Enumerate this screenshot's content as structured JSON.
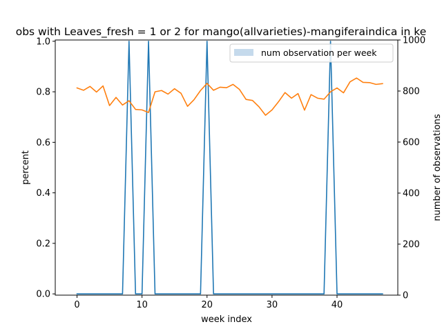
{
  "chart_data": {
    "type": "line",
    "title": "obs with Leaves_fresh = 1 or 2 for mango(allvarieties)-mangiferaindica in ke",
    "xlabel": "week index",
    "ylabel": "percent",
    "y2label": "number of observations",
    "xlim": [
      -3.35,
      49.35
    ],
    "ylim": [
      -0.005,
      1.005
    ],
    "y2lim": [
      0,
      1000
    ],
    "xticks": [
      0,
      10,
      20,
      30,
      40
    ],
    "yticks": [
      0.0,
      0.2,
      0.4,
      0.6,
      0.8,
      1.0
    ],
    "y2ticks": [
      0,
      200,
      400,
      600,
      800,
      1000
    ],
    "xtick_labels": [
      "0",
      "10",
      "20",
      "30",
      "40"
    ],
    "ytick_labels": [
      "0.0",
      "0.2",
      "0.4",
      "0.6",
      "0.8",
      "1.0"
    ],
    "y2tick_labels": [
      "0",
      "200",
      "400",
      "600",
      "800",
      "1000"
    ],
    "grid": false,
    "legend": {
      "placement": "top-right",
      "entries": [
        "num observation per week"
      ]
    },
    "series": [
      {
        "axis": "left",
        "color": "#1f77b4",
        "x": [
          0,
          1,
          2,
          3,
          4,
          5,
          6,
          7,
          8,
          9,
          10,
          11,
          12,
          13,
          14,
          15,
          16,
          17,
          18,
          19,
          20,
          21,
          22,
          23,
          24,
          25,
          26,
          27,
          28,
          29,
          30,
          31,
          32,
          33,
          34,
          35,
          36,
          37,
          38,
          39,
          40,
          41,
          42,
          43,
          44,
          45,
          46,
          47
        ],
        "values": [
          0,
          0,
          0,
          0,
          0,
          0,
          0,
          0,
          1,
          0,
          0,
          1,
          0,
          0,
          0,
          0,
          0,
          0,
          0,
          0,
          1,
          0,
          0,
          0,
          0,
          0,
          0,
          0,
          0,
          0,
          0,
          0,
          0,
          0,
          0,
          0,
          0,
          0,
          0,
          1,
          0,
          0,
          0,
          0,
          0,
          0,
          0,
          0
        ]
      },
      {
        "axis": "right",
        "color": "#ff7f0e",
        "x": [
          0,
          1,
          2,
          3,
          4,
          5,
          6,
          7,
          8,
          9,
          10,
          11,
          12,
          13,
          14,
          15,
          16,
          17,
          18,
          19,
          20,
          21,
          22,
          23,
          24,
          25,
          26,
          27,
          28,
          29,
          30,
          31,
          32,
          33,
          34,
          35,
          36,
          37,
          38,
          39,
          40,
          41,
          42,
          43,
          44,
          45,
          46,
          47
        ],
        "values": [
          812,
          803,
          818,
          796,
          820,
          743,
          775,
          745,
          762,
          728,
          726,
          716,
          797,
          802,
          788,
          809,
          791,
          740,
          766,
          802,
          830,
          803,
          815,
          813,
          826,
          806,
          767,
          763,
          738,
          705,
          726,
          758,
          794,
          772,
          790,
          725,
          786,
          772,
          768,
          797,
          812,
          793,
          836,
          851,
          834,
          833,
          826,
          829
        ]
      }
    ],
    "legend_bar_color": "#c5daec"
  }
}
